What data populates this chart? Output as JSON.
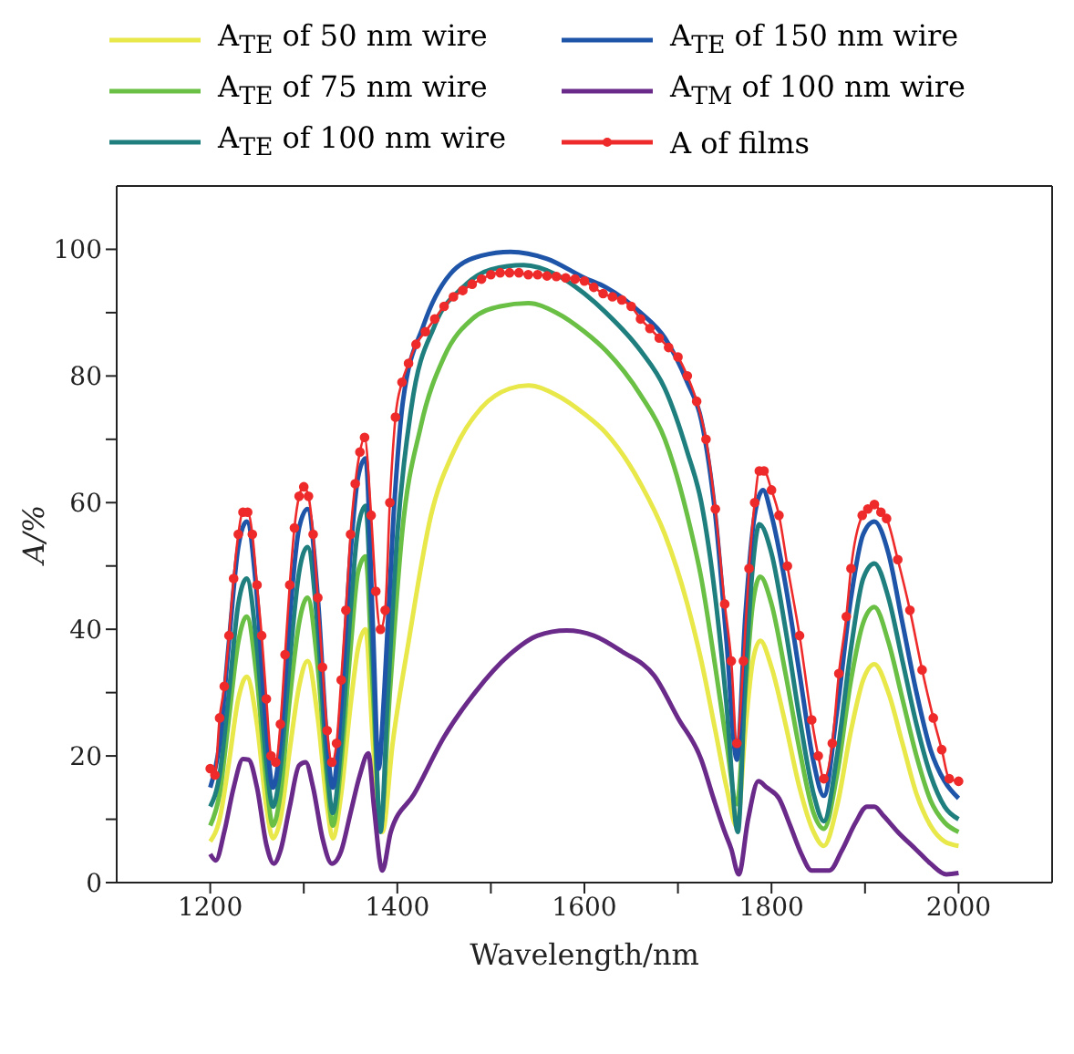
{
  "chart_data": {
    "type": "line",
    "xlabel": "Wavelength/nm",
    "ylabel": "A/%",
    "xlim": [
      1100,
      2100
    ],
    "xticks": [
      1200,
      {
        "value": 1300,
        "label": null
      },
      1400,
      {
        "value": 1500,
        "label": null
      },
      1600,
      {
        "value": 1700,
        "label": null
      },
      1800,
      {
        "value": 1900,
        "label": null
      },
      2000
    ],
    "ylim": [
      0,
      110
    ],
    "yticks": [
      0,
      {
        "value": 10,
        "label": null
      },
      20,
      {
        "value": 30,
        "label": null
      },
      40,
      {
        "value": 50,
        "label": null
      },
      60,
      {
        "value": 70,
        "label": null
      },
      80,
      {
        "value": 90,
        "label": null
      },
      100
    ],
    "legend": "top",
    "line_style": "solid",
    "series": [
      {
        "name": "A$_{TE}$ of 50 nm wire",
        "color": "#e8e84a",
        "marker": "none",
        "x": [
          1200,
          1210,
          1220,
          1230,
          1239,
          1250,
          1260,
          1267,
          1275,
          1285,
          1295,
          1304,
          1315,
          1325,
          1331,
          1340,
          1350,
          1358,
          1366,
          1374,
          1384,
          1395,
          1412,
          1436,
          1460,
          1490,
          1520,
          1540,
          1570,
          1600,
          1623,
          1660,
          1686,
          1710,
          1725,
          1740,
          1752,
          1763,
          1772,
          1780,
          1788,
          1800,
          1815,
          1830,
          1845,
          1856,
          1870,
          1885,
          1898,
          1910,
          1925,
          1940,
          1955,
          1970,
          1985,
          2000
        ],
        "values": [
          6.5,
          10,
          19,
          29,
          32.5,
          25,
          12,
          7,
          10,
          21,
          31,
          35,
          26,
          12,
          7,
          14,
          28,
          37,
          40,
          22,
          8,
          22,
          38,
          58,
          68,
          75,
          78,
          78.5,
          77,
          74,
          71,
          63,
          55,
          44,
          35,
          24,
          15,
          8.8,
          24,
          35,
          38.2,
          34,
          25,
          15,
          8,
          5.8,
          12,
          24,
          32,
          34.5,
          30,
          22,
          14,
          9,
          6.5,
          5.8
        ]
      },
      {
        "name": "A$_{TE}$ of 75 nm wire",
        "color": "#6abf45",
        "marker": "none",
        "x": [
          1200,
          1210,
          1220,
          1230,
          1239,
          1250,
          1260,
          1267,
          1275,
          1285,
          1295,
          1304,
          1315,
          1325,
          1331,
          1340,
          1350,
          1358,
          1366,
          1374,
          1382,
          1392,
          1405,
          1425,
          1450,
          1480,
          1510,
          1540,
          1570,
          1600,
          1623,
          1660,
          1686,
          1710,
          1725,
          1740,
          1752,
          1763,
          1772,
          1780,
          1788,
          1800,
          1815,
          1830,
          1845,
          1856,
          1870,
          1885,
          1898,
          1910,
          1925,
          1940,
          1955,
          1970,
          1985,
          2000
        ],
        "values": [
          9,
          14,
          26,
          38,
          42,
          32,
          16,
          9,
          14,
          29,
          41,
          45,
          34,
          16,
          9,
          19,
          37,
          49,
          51.5,
          30,
          9,
          30,
          55,
          72,
          83,
          89,
          91,
          91.5,
          90,
          87,
          84,
          77,
          70,
          58,
          48,
          34,
          22,
          12.4,
          30,
          44,
          48.3,
          44,
          33,
          21,
          11,
          8.5,
          17,
          32,
          41,
          43.5,
          38,
          29,
          20,
          13,
          9.5,
          8
        ]
      },
      {
        "name": "A$_{TE}$ of 100 nm wire",
        "color": "#1f7f7f",
        "marker": "none",
        "x": [
          1200,
          1210,
          1220,
          1230,
          1239,
          1250,
          1260,
          1267,
          1275,
          1285,
          1295,
          1304,
          1315,
          1325,
          1331,
          1340,
          1350,
          1358,
          1366,
          1374,
          1382,
          1390,
          1400,
          1415,
          1440,
          1470,
          1500,
          1535,
          1570,
          1600,
          1623,
          1660,
          1686,
          1710,
          1725,
          1740,
          1752,
          1764,
          1772,
          1780,
          1787,
          1800,
          1815,
          1830,
          1845,
          1856,
          1870,
          1885,
          1898,
          1910,
          1925,
          1940,
          1955,
          1970,
          1985,
          2000
        ],
        "values": [
          12,
          17,
          30,
          44,
          48,
          37,
          19,
          12,
          18,
          35,
          49,
          53,
          40,
          18,
          11,
          22,
          43,
          56,
          59.5,
          35,
          8,
          30,
          55,
          75,
          88,
          94,
          96.8,
          97.5,
          96,
          93,
          90,
          84,
          78,
          68,
          60,
          45,
          28,
          8,
          32,
          50,
          56.6,
          52,
          40,
          26,
          14,
          9.7,
          20,
          37,
          48,
          50.4,
          45,
          35,
          25,
          17,
          12,
          10
        ]
      },
      {
        "name": "A$_{TE}$ of 150 nm wire",
        "color": "#1f55a8",
        "marker": "none",
        "x": [
          1200,
          1210,
          1220,
          1230,
          1239,
          1250,
          1260,
          1267,
          1275,
          1285,
          1295,
          1304,
          1315,
          1325,
          1331,
          1340,
          1350,
          1358,
          1366,
          1374,
          1380,
          1386,
          1396,
          1406,
          1428,
          1456,
          1490,
          1521,
          1560,
          1600,
          1623,
          1660,
          1686,
          1710,
          1725,
          1740,
          1752,
          1763,
          1772,
          1782,
          1791,
          1800,
          1815,
          1830,
          1845,
          1856,
          1870,
          1885,
          1898,
          1910,
          1925,
          1940,
          1955,
          1970,
          1985,
          2000
        ],
        "values": [
          15,
          22,
          38,
          53,
          57,
          45,
          24,
          15,
          22,
          42,
          56,
          59,
          45,
          22,
          15,
          28,
          52,
          64,
          67,
          40,
          18,
          30,
          58,
          76,
          88,
          96,
          99,
          99.6,
          98.5,
          95.5,
          94,
          90,
          86,
          79,
          73,
          58,
          38,
          19.4,
          42,
          58,
          62,
          58,
          47,
          33,
          19,
          13.7,
          27,
          45,
          55,
          57,
          52,
          41,
          30,
          21,
          16,
          13.3
        ]
      },
      {
        "name": "A$_{TM}$ of 100 nm wire",
        "color": "#6a2a8a",
        "marker": "none",
        "x": [
          1200,
          1206,
          1215,
          1225,
          1235,
          1241,
          1250,
          1260,
          1268,
          1275,
          1285,
          1295,
          1302,
          1310,
          1320,
          1330,
          1340,
          1350,
          1360,
          1369,
          1375,
          1384,
          1393,
          1418,
          1450,
          1483,
          1520,
          1550,
          1581,
          1610,
          1640,
          1675,
          1700,
          1725,
          1738,
          1750,
          1757,
          1765,
          1775,
          1786,
          1795,
          1808,
          1820,
          1832,
          1843,
          1862,
          1875,
          1890,
          1902,
          1910,
          1920,
          1935,
          1954,
          1970,
          1987,
          2000
        ],
        "values": [
          4.5,
          3.5,
          8,
          15,
          19.5,
          19.4,
          15,
          6,
          3,
          5,
          12,
          18.5,
          19,
          15,
          7,
          3,
          5,
          11,
          17,
          20.4,
          12,
          1.9,
          8,
          14,
          23,
          30,
          36,
          39,
          39.8,
          39,
          36.5,
          32.6,
          26,
          19.4,
          13.3,
          8,
          5.3,
          1.3,
          10,
          16,
          15,
          13.3,
          9,
          4.5,
          1.9,
          1.9,
          5,
          9.5,
          12,
          12,
          10.5,
          8,
          5.3,
          3,
          1.3,
          1.5
        ]
      },
      {
        "name": "A of films",
        "color": "#ee2a2a",
        "marker": "circle",
        "x": [
          1200,
          1205,
          1210,
          1215,
          1220,
          1225,
          1230,
          1235,
          1240,
          1245,
          1250,
          1255,
          1260,
          1265,
          1270,
          1275,
          1280,
          1285,
          1290,
          1295,
          1300,
          1305,
          1310,
          1315,
          1320,
          1325,
          1330,
          1335,
          1340,
          1345,
          1350,
          1355,
          1360,
          1365,
          1372,
          1377,
          1382,
          1387,
          1392,
          1398,
          1405,
          1412,
          1420,
          1430,
          1440,
          1450,
          1460,
          1470,
          1480,
          1490,
          1500,
          1510,
          1520,
          1530,
          1540,
          1550,
          1560,
          1570,
          1580,
          1590,
          1600,
          1610,
          1620,
          1630,
          1640,
          1650,
          1660,
          1670,
          1680,
          1690,
          1700,
          1710,
          1720,
          1730,
          1740,
          1750,
          1757,
          1763,
          1770,
          1776,
          1782,
          1787,
          1792,
          1800,
          1808,
          1817,
          1830,
          1843,
          1850,
          1856,
          1865,
          1872,
          1880,
          1885,
          1897,
          1903,
          1910,
          1917,
          1923,
          1935,
          1948,
          1961,
          1973,
          1982,
          1990,
          2000
        ],
        "values": [
          18,
          17,
          26,
          31,
          39,
          48,
          55,
          58.5,
          58.5,
          55,
          47,
          39,
          29,
          20,
          19,
          25,
          36,
          47,
          56,
          61,
          62.5,
          61,
          55,
          45,
          34,
          24,
          19,
          22,
          32,
          43,
          55,
          63,
          68,
          70.3,
          58,
          46,
          40,
          43,
          60,
          73.5,
          79,
          82,
          85,
          87,
          89,
          91,
          92.5,
          93.5,
          94.5,
          95.3,
          96,
          96.3,
          96.3,
          96.3,
          96,
          96,
          95.8,
          95.7,
          95.5,
          95.3,
          95,
          94,
          93,
          92.5,
          92,
          91,
          89,
          87.5,
          86,
          84.5,
          83,
          80,
          76,
          70,
          59,
          44,
          35,
          22,
          35,
          49.6,
          60,
          65,
          65,
          62,
          58,
          50,
          39,
          25.7,
          20,
          16.4,
          22,
          33,
          42,
          49.6,
          58,
          59,
          59.7,
          58.5,
          57.5,
          51,
          43,
          33.6,
          26,
          21,
          16.4,
          16
        ]
      }
    ]
  }
}
